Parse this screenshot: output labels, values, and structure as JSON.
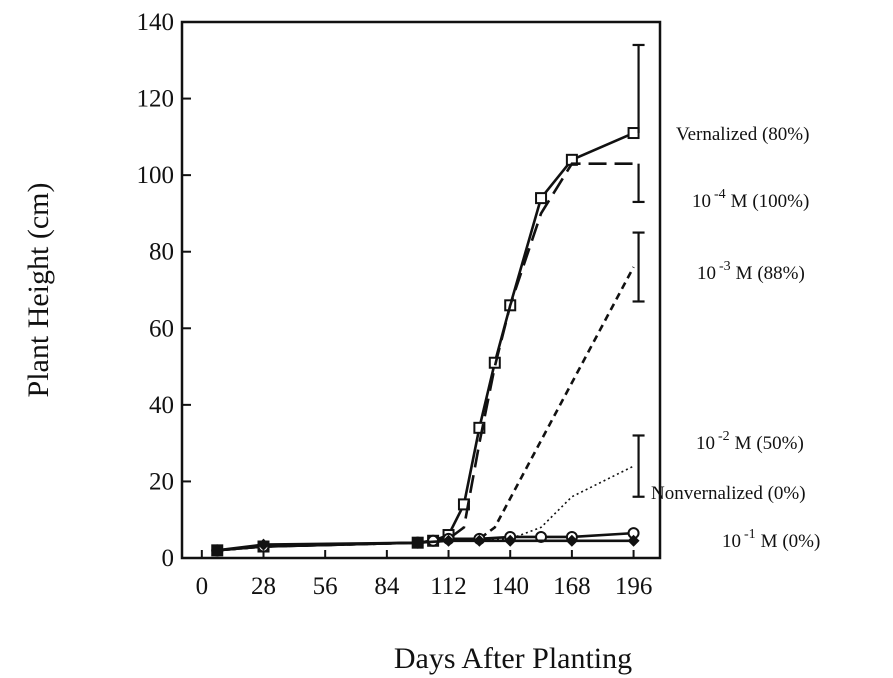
{
  "chart_data": {
    "type": "line",
    "x_label": "Days After Planting",
    "y_label": "Plant Height (cm)",
    "xlim": [
      -9,
      208
    ],
    "ylim": [
      0,
      140
    ],
    "xticks": [
      0,
      28,
      56,
      84,
      112,
      140,
      168,
      196
    ],
    "yticks": [
      0,
      20,
      40,
      60,
      80,
      100,
      120,
      140
    ],
    "series": [
      {
        "name": "Vernalized (80%)",
        "color": "#111",
        "dash": "solid",
        "marker": "square",
        "x": [
          7,
          28,
          98,
          105,
          112,
          119,
          126,
          133,
          140,
          154,
          168,
          196
        ],
        "values": [
          2,
          3,
          4,
          4.5,
          6,
          14,
          34,
          51,
          66,
          94,
          104,
          111
        ],
        "errors": [
          null,
          null,
          null,
          null,
          null,
          null,
          null,
          null,
          null,
          null,
          null,
          23
        ],
        "error_direction": "up"
      },
      {
        "name": "10",
        "name_sup": "-4",
        "name_rest": "M (100%)",
        "color": "#111",
        "dash": "long",
        "marker": null,
        "x": [
          7,
          28,
          98,
          112,
          119,
          126,
          133,
          140,
          154,
          168,
          196
        ],
        "values": [
          2,
          3,
          4,
          5,
          8,
          30,
          50,
          66,
          90,
          103,
          103
        ],
        "errors": [
          null,
          null,
          null,
          null,
          null,
          null,
          null,
          null,
          null,
          null,
          10
        ],
        "error_direction": "down"
      },
      {
        "name": "10",
        "name_sup": "-3",
        "name_rest": "M (88%)",
        "color": "#111",
        "dash": "short",
        "marker": null,
        "x": [
          7,
          28,
          98,
          112,
          126,
          133,
          196
        ],
        "values": [
          2,
          3,
          4,
          4.5,
          5,
          8,
          76
        ],
        "errors": [
          null,
          null,
          null,
          null,
          null,
          null,
          9
        ],
        "error_direction": "both"
      },
      {
        "name": "10",
        "name_sup": "-2",
        "name_rest": "M (50%)",
        "color": "#111",
        "dash": "dot",
        "marker": null,
        "x": [
          7,
          28,
          98,
          112,
          140,
          154,
          168,
          196
        ],
        "values": [
          2,
          3,
          4,
          4.5,
          5,
          8,
          16,
          24
        ],
        "errors": [
          null,
          null,
          null,
          null,
          null,
          null,
          null,
          8
        ],
        "error_direction": "both"
      },
      {
        "name": "Nonvernalized (0%)",
        "color": "#111",
        "dash": "solid",
        "marker": "circle",
        "x": [
          7,
          28,
          98,
          105,
          112,
          126,
          140,
          154,
          168,
          196
        ],
        "values": [
          2,
          3,
          4,
          4.5,
          5,
          5,
          5.5,
          5.5,
          5.5,
          6.5
        ]
      },
      {
        "name": "10",
        "name_sup": "-1",
        "name_rest": "M (0%)",
        "color": "#111",
        "dash": "solid",
        "marker": "diamond",
        "x": [
          7,
          28,
          98,
          112,
          126,
          140,
          168,
          196
        ],
        "values": [
          2,
          3.5,
          4,
          4.5,
          4.5,
          4.5,
          4.5,
          4.5
        ]
      }
    ]
  }
}
